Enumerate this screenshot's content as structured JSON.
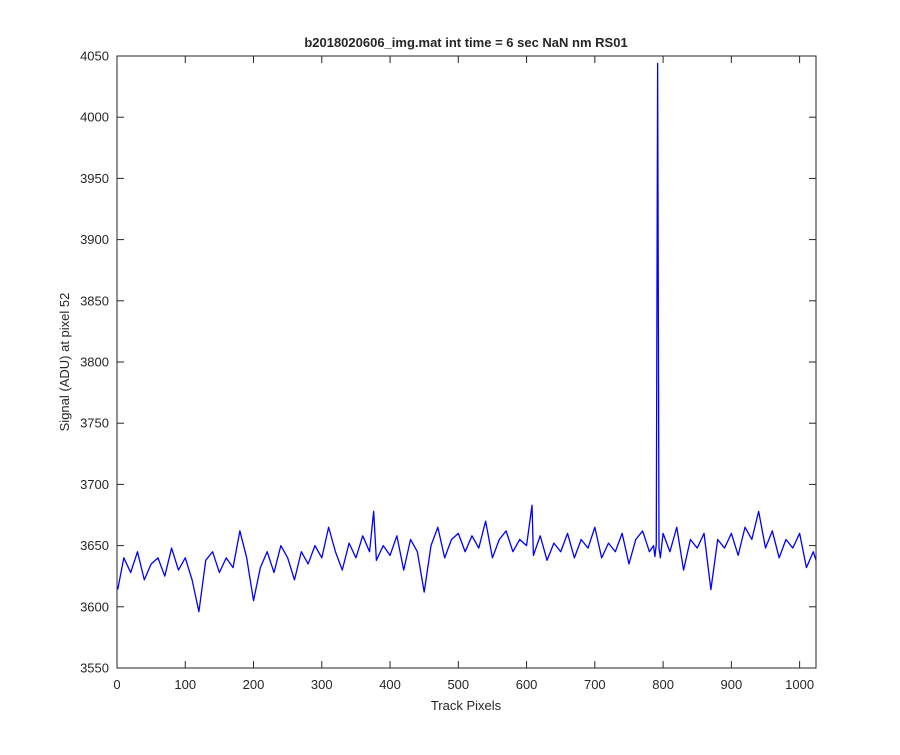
{
  "chart_data": {
    "type": "line",
    "title": "b2018020606_img.mat int time = 6 sec  NaN nm RS01",
    "xlabel": "Track Pixels",
    "ylabel": "Signal (ADU) at pixel 52",
    "xlim": [
      0,
      1024
    ],
    "ylim": [
      3550,
      4050
    ],
    "xticks": [
      0,
      100,
      200,
      300,
      400,
      500,
      600,
      700,
      800,
      900,
      1000
    ],
    "yticks": [
      3550,
      3600,
      3650,
      3700,
      3750,
      3800,
      3850,
      3900,
      3950,
      4000,
      4050
    ],
    "grid": false,
    "legend": "none",
    "series": [
      {
        "color": "#0000ff",
        "x": [
          1,
          10,
          20,
          30,
          40,
          50,
          60,
          70,
          80,
          90,
          100,
          110,
          120,
          130,
          140,
          150,
          160,
          170,
          180,
          190,
          200,
          210,
          220,
          230,
          240,
          250,
          260,
          270,
          280,
          290,
          300,
          310,
          320,
          330,
          340,
          350,
          360,
          370,
          376,
          380,
          390,
          400,
          410,
          420,
          430,
          440,
          450,
          460,
          470,
          480,
          490,
          500,
          510,
          520,
          530,
          540,
          550,
          560,
          570,
          580,
          590,
          600,
          608,
          610,
          620,
          630,
          640,
          650,
          660,
          670,
          680,
          690,
          700,
          710,
          720,
          730,
          740,
          750,
          760,
          770,
          780,
          786,
          788,
          790,
          792,
          794,
          796,
          800,
          810,
          820,
          830,
          840,
          850,
          860,
          870,
          880,
          890,
          900,
          910,
          920,
          930,
          940,
          950,
          960,
          970,
          980,
          990,
          1000,
          1010,
          1020,
          1024
        ],
        "y": [
          3614,
          3640,
          3628,
          3645,
          3622,
          3635,
          3640,
          3625,
          3648,
          3630,
          3640,
          3622,
          3596,
          3638,
          3645,
          3628,
          3640,
          3632,
          3662,
          3640,
          3605,
          3632,
          3645,
          3628,
          3650,
          3640,
          3622,
          3645,
          3635,
          3650,
          3640,
          3665,
          3645,
          3630,
          3652,
          3640,
          3658,
          3645,
          3678,
          3638,
          3650,
          3642,
          3658,
          3630,
          3655,
          3645,
          3612,
          3650,
          3665,
          3640,
          3655,
          3660,
          3645,
          3658,
          3648,
          3670,
          3640,
          3655,
          3662,
          3645,
          3655,
          3650,
          3683,
          3642,
          3658,
          3638,
          3652,
          3645,
          3660,
          3640,
          3655,
          3648,
          3665,
          3640,
          3652,
          3645,
          3660,
          3635,
          3655,
          3662,
          3645,
          3650,
          3641,
          3651,
          4044,
          3648,
          3640,
          3660,
          3645,
          3665,
          3630,
          3655,
          3648,
          3660,
          3614,
          3655,
          3648,
          3660,
          3642,
          3665,
          3655,
          3678,
          3648,
          3662,
          3640,
          3655,
          3648,
          3660,
          3632,
          3645,
          3638
        ]
      }
    ]
  }
}
